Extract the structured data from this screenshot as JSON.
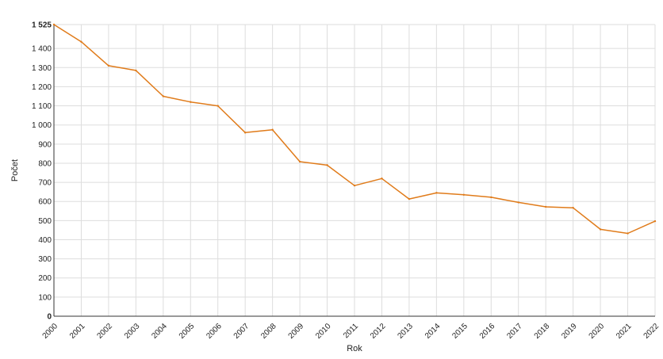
{
  "chart_data": {
    "type": "line",
    "title": "",
    "xlabel": "Rok",
    "ylabel": "Počet",
    "x": [
      "2000",
      "2001",
      "2002",
      "2003",
      "2004",
      "2005",
      "2006",
      "2007",
      "2008",
      "2009",
      "2010",
      "2011",
      "2012",
      "2013",
      "2014",
      "2015",
      "2016",
      "2017",
      "2018",
      "2019",
      "2020",
      "2021",
      "2022"
    ],
    "series": [
      {
        "values": [
          1525,
          1435,
          1310,
          1285,
          1150,
          1120,
          1100,
          960,
          975,
          808,
          790,
          683,
          720,
          613,
          645,
          635,
          622,
          595,
          572,
          567,
          454,
          433,
          497
        ]
      }
    ],
    "ylim": [
      0,
      1525
    ],
    "yticks": [
      0,
      100,
      200,
      300,
      400,
      500,
      600,
      700,
      800,
      900,
      1000,
      1100,
      1200,
      1300,
      1400,
      1525
    ],
    "ytick_labels": [
      "0",
      "100",
      "200",
      "300",
      "400",
      "500",
      "600",
      "700",
      "800",
      "900",
      "1 000",
      "1 100",
      "1 200",
      "1 300",
      "1 400",
      "1 525"
    ],
    "grid": true,
    "colors": {
      "line": "#e07b1a",
      "grid": "#dddddd",
      "axis": "#333333"
    }
  }
}
